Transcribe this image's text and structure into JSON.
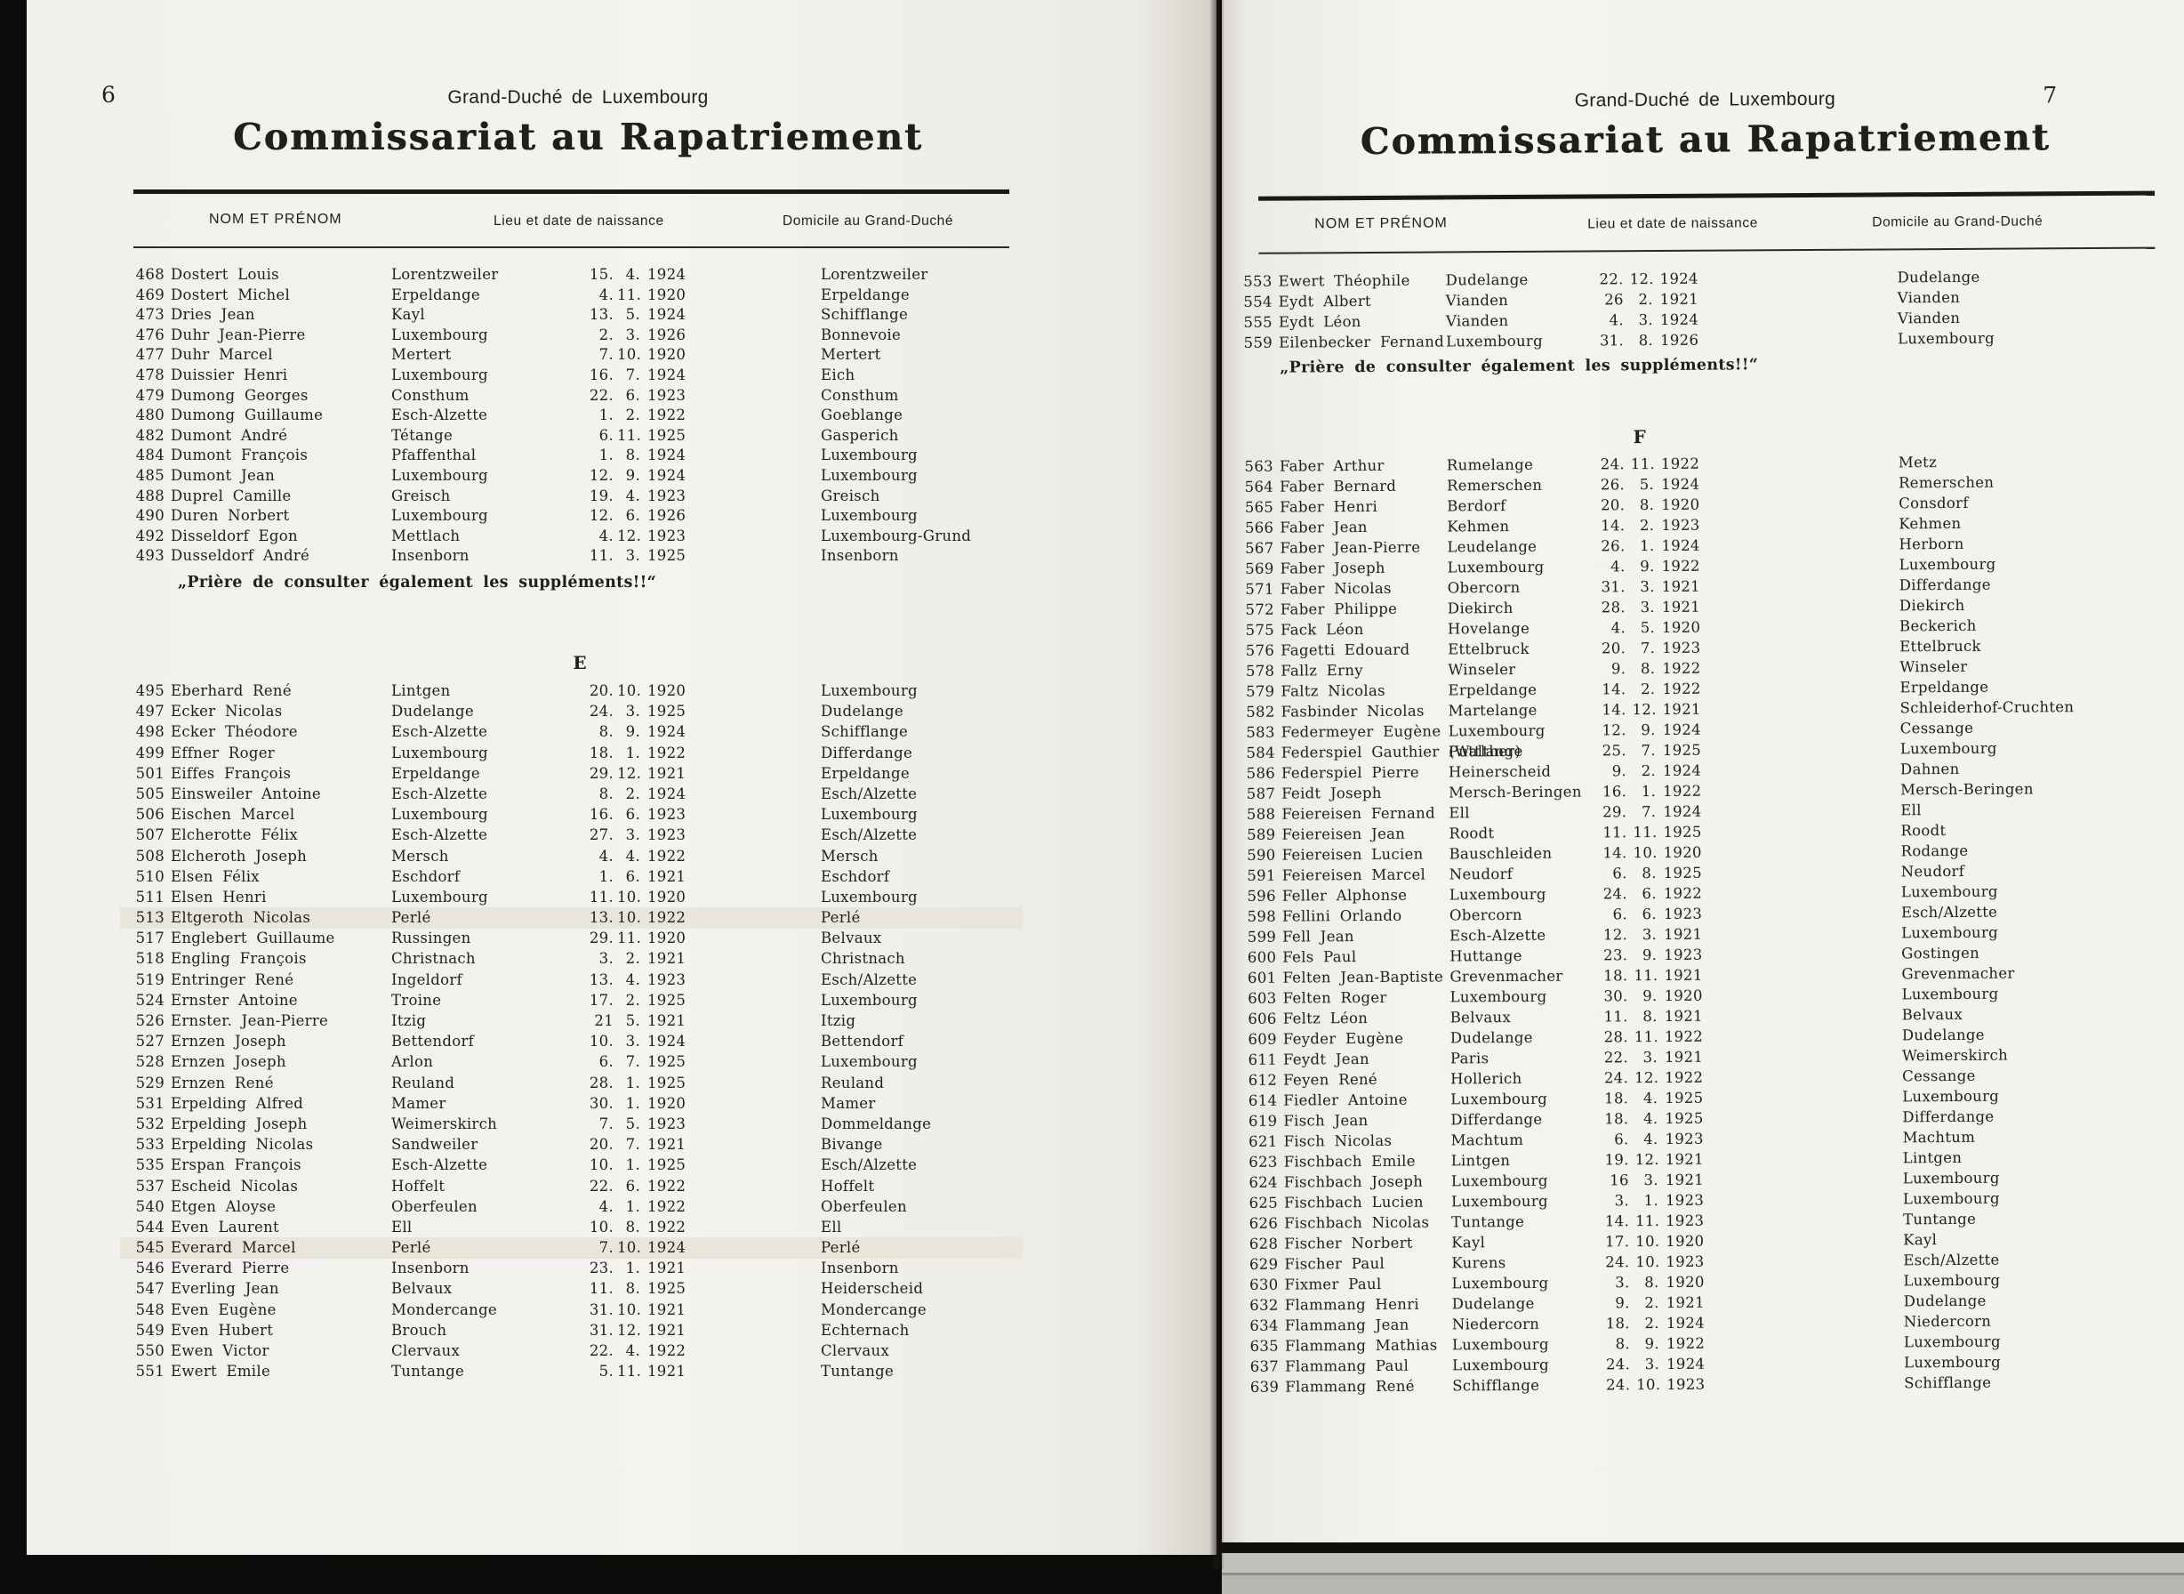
{
  "colors": {
    "paper": "#f4f3ee",
    "ink": "#211f1c",
    "row_highlight": "#e8e5db"
  },
  "page6": {
    "number": "6",
    "country_header": "Grand-Duché de Luxembourg",
    "title": "Commissariat au Rapatriement",
    "col_name": "NOM ET PRÉNOM",
    "col_birth": "Lieu et date de naissance",
    "col_domicile": "Domicile au Grand-Duché",
    "note": "„Prière de consulter également les suppléments!!“",
    "section_letter": "E",
    "block1": [
      {
        "no": "468",
        "name": "Dostert Louis",
        "birth": "Lorentzweiler",
        "d": "15.",
        "m": "4.",
        "y": "1924",
        "dom": "Lorentzweiler"
      },
      {
        "no": "469",
        "name": "Dostert Michel",
        "birth": "Erpeldange",
        "d": "4.",
        "m": "11.",
        "y": "1920",
        "dom": "Erpeldange"
      },
      {
        "no": "473",
        "name": "Dries Jean",
        "birth": "Kayl",
        "d": "13.",
        "m": "5.",
        "y": "1924",
        "dom": "Schifflange"
      },
      {
        "no": "476",
        "name": "Duhr Jean-Pierre",
        "birth": "Luxembourg",
        "d": "2.",
        "m": "3.",
        "y": "1926",
        "dom": "Bonnevoie"
      },
      {
        "no": "477",
        "name": "Duhr Marcel",
        "birth": "Mertert",
        "d": "7.",
        "m": "10.",
        "y": "1920",
        "dom": "Mertert"
      },
      {
        "no": "478",
        "name": "Duissier Henri",
        "birth": "Luxembourg",
        "d": "16.",
        "m": "7.",
        "y": "1924",
        "dom": "Eich"
      },
      {
        "no": "479",
        "name": "Dumong Georges",
        "birth": "Consthum",
        "d": "22.",
        "m": "6.",
        "y": "1923",
        "dom": "Consthum"
      },
      {
        "no": "480",
        "name": "Dumong Guillaume",
        "birth": "Esch-Alzette",
        "d": "1.",
        "m": "2.",
        "y": "1922",
        "dom": "Goeblange"
      },
      {
        "no": "482",
        "name": "Dumont André",
        "birth": "Tétange",
        "d": "6.",
        "m": "11.",
        "y": "1925",
        "dom": "Gasperich"
      },
      {
        "no": "484",
        "name": "Dumont François",
        "birth": "Pfaffenthal",
        "d": "1.",
        "m": "8.",
        "y": "1924",
        "dom": "Luxembourg"
      },
      {
        "no": "485",
        "name": "Dumont Jean",
        "birth": "Luxembourg",
        "d": "12.",
        "m": "9.",
        "y": "1924",
        "dom": "Luxembourg"
      },
      {
        "no": "488",
        "name": "Duprel Camille",
        "birth": "Greisch",
        "d": "19.",
        "m": "4.",
        "y": "1923",
        "dom": "Greisch"
      },
      {
        "no": "490",
        "name": "Duren Norbert",
        "birth": "Luxembourg",
        "d": "12.",
        "m": "6.",
        "y": "1926",
        "dom": "Luxembourg"
      },
      {
        "no": "492",
        "name": "Disseldorf Egon",
        "birth": "Mettlach",
        "d": "4.",
        "m": "12.",
        "y": "1923",
        "dom": "Luxembourg-Grund"
      },
      {
        "no": "493",
        "name": "Dusseldorf André",
        "birth": "Insenborn",
        "d": "11.",
        "m": "3.",
        "y": "1925",
        "dom": "Insenborn"
      }
    ],
    "block2": [
      {
        "no": "495",
        "name": "Eberhard René",
        "birth": "Lintgen",
        "d": "20.",
        "m": "10.",
        "y": "1920",
        "dom": "Luxembourg"
      },
      {
        "no": "497",
        "name": "Ecker Nicolas",
        "birth": "Dudelange",
        "d": "24.",
        "m": "3.",
        "y": "1925",
        "dom": "Dudelange"
      },
      {
        "no": "498",
        "name": "Ecker Théodore",
        "birth": "Esch-Alzette",
        "d": "8.",
        "m": "9.",
        "y": "1924",
        "dom": "Schifflange"
      },
      {
        "no": "499",
        "name": "Effner Roger",
        "birth": "Luxembourg",
        "d": "18.",
        "m": "1.",
        "y": "1922",
        "dom": "Differdange"
      },
      {
        "no": "501",
        "name": "Eiffes François",
        "birth": "Erpeldange",
        "d": "29.",
        "m": "12.",
        "y": "1921",
        "dom": "Erpeldange"
      },
      {
        "no": "505",
        "name": "Einsweiler Antoine",
        "birth": "Esch-Alzette",
        "d": "8.",
        "m": "2.",
        "y": "1924",
        "dom": "Esch/Alzette"
      },
      {
        "no": "506",
        "name": "Eischen Marcel",
        "birth": "Luxembourg",
        "d": "16.",
        "m": "6.",
        "y": "1923",
        "dom": "Luxembourg"
      },
      {
        "no": "507",
        "name": "Elcherotte Félix",
        "birth": "Esch-Alzette",
        "d": "27.",
        "m": "3.",
        "y": "1923",
        "dom": "Esch/Alzette"
      },
      {
        "no": "508",
        "name": "Elcheroth Joseph",
        "birth": "Mersch",
        "d": "4.",
        "m": "4.",
        "y": "1922",
        "dom": "Mersch"
      },
      {
        "no": "510",
        "name": "Elsen Félix",
        "birth": "Eschdorf",
        "d": "1.",
        "m": "6.",
        "y": "1921",
        "dom": "Eschdorf"
      },
      {
        "no": "511",
        "name": "Elsen Henri",
        "birth": "Luxembourg",
        "d": "11.",
        "m": "10.",
        "y": "1920",
        "dom": "Luxembourg"
      },
      {
        "no": "513",
        "name": "Eltgeroth Nicolas",
        "birth": "Perlé",
        "d": "13.",
        "m": "10.",
        "y": "1922",
        "dom": "Perlé",
        "hl": true
      },
      {
        "no": "517",
        "name": "Englebert Guillaume",
        "birth": "Russingen",
        "d": "29.",
        "m": "11.",
        "y": "1920",
        "dom": "Belvaux"
      },
      {
        "no": "518",
        "name": "Engling François",
        "birth": "Christnach",
        "d": "3.",
        "m": "2.",
        "y": "1921",
        "dom": "Christnach"
      },
      {
        "no": "519",
        "name": "Entringer René",
        "birth": "Ingeldorf",
        "d": "13.",
        "m": "4.",
        "y": "1923",
        "dom": "Esch/Alzette"
      },
      {
        "no": "524",
        "name": "Ernster Antoine",
        "birth": "Troine",
        "d": "17.",
        "m": "2.",
        "y": "1925",
        "dom": "Luxembourg"
      },
      {
        "no": "526",
        "name": "Ernster. Jean-Pierre",
        "birth": "Itzig",
        "d": "21",
        "m": "5.",
        "y": "1921",
        "dom": "Itzig"
      },
      {
        "no": "527",
        "name": "Ernzen Joseph",
        "birth": "Bettendorf",
        "d": "10.",
        "m": "3.",
        "y": "1924",
        "dom": "Bettendorf"
      },
      {
        "no": "528",
        "name": "Ernzen Joseph",
        "birth": "Arlon",
        "d": "6.",
        "m": "7.",
        "y": "1925",
        "dom": "Luxembourg"
      },
      {
        "no": "529",
        "name": "Ernzen René",
        "birth": "Reuland",
        "d": "28.",
        "m": "1.",
        "y": "1925",
        "dom": "Reuland"
      },
      {
        "no": "531",
        "name": "Erpelding Alfred",
        "birth": "Mamer",
        "d": "30.",
        "m": "1.",
        "y": "1920",
        "dom": "Mamer"
      },
      {
        "no": "532",
        "name": "Erpelding Joseph",
        "birth": "Weimerskirch",
        "d": "7.",
        "m": "5.",
        "y": "1923",
        "dom": "Dommeldange"
      },
      {
        "no": "533",
        "name": "Erpelding Nicolas",
        "birth": "Sandweiler",
        "d": "20.",
        "m": "7.",
        "y": "1921",
        "dom": "Bivange"
      },
      {
        "no": "535",
        "name": "Erspan François",
        "birth": "Esch-Alzette",
        "d": "10.",
        "m": "1.",
        "y": "1925",
        "dom": "Esch/Alzette"
      },
      {
        "no": "537",
        "name": "Escheid Nicolas",
        "birth": "Hoffelt",
        "d": "22.",
        "m": "6.",
        "y": "1922",
        "dom": "Hoffelt"
      },
      {
        "no": "540",
        "name": "Etgen Aloyse",
        "birth": "Oberfeulen",
        "d": "4.",
        "m": "1.",
        "y": "1922",
        "dom": "Oberfeulen"
      },
      {
        "no": "544",
        "name": "Even Laurent",
        "birth": "Ell",
        "d": "10.",
        "m": "8.",
        "y": "1922",
        "dom": "Ell"
      },
      {
        "no": "545",
        "name": "Everard Marcel",
        "birth": "Perlé",
        "d": "7.",
        "m": "10.",
        "y": "1924",
        "dom": "Perlé",
        "hl": true
      },
      {
        "no": "546",
        "name": "Everard Pierre",
        "birth": "Insenborn",
        "d": "23.",
        "m": "1.",
        "y": "1921",
        "dom": "Insenborn"
      },
      {
        "no": "547",
        "name": "Everling Jean",
        "birth": "Belvaux",
        "d": "11.",
        "m": "8.",
        "y": "1925",
        "dom": "Heiderscheid"
      },
      {
        "no": "548",
        "name": "Even Eugène",
        "birth": "Mondercange",
        "d": "31.",
        "m": "10.",
        "y": "1921",
        "dom": "Mondercange"
      },
      {
        "no": "549",
        "name": "Even Hubert",
        "birth": "Brouch",
        "d": "31.",
        "m": "12.",
        "y": "1921",
        "dom": "Echternach"
      },
      {
        "no": "550",
        "name": "Ewen Victor",
        "birth": "Clervaux",
        "d": "22.",
        "m": "4.",
        "y": "1922",
        "dom": "Clervaux"
      },
      {
        "no": "551",
        "name": "Ewert Emile",
        "birth": "Tuntange",
        "d": "5.",
        "m": "11.",
        "y": "1921",
        "dom": "Tuntange"
      }
    ]
  },
  "page7": {
    "number": "7",
    "country_header": "Grand-Duché de Luxembourg",
    "title": "Commissariat au Rapatriement",
    "col_name": "NOM ET PRÉNOM",
    "col_birth": "Lieu et date de naissance",
    "col_domicile": "Domicile au Grand-Duché",
    "note": "„Prière de consulter également les suppléments!!“",
    "section_letter": "F",
    "block1": [
      {
        "no": "553",
        "name": "Ewert Théophile",
        "birth": "Dudelange",
        "d": "22.",
        "m": "12.",
        "y": "1924",
        "dom": "Dudelange"
      },
      {
        "no": "554",
        "name": "Eydt Albert",
        "birth": "Vianden",
        "d": "26",
        "m": "2.",
        "y": "1921",
        "dom": "Vianden"
      },
      {
        "no": "555",
        "name": "Eydt Léon",
        "birth": "Vianden",
        "d": "4.",
        "m": "3.",
        "y": "1924",
        "dom": "Vianden"
      },
      {
        "no": "559",
        "name": "Eilenbecker Fernand",
        "birth": "Luxembourg",
        "d": "31.",
        "m": "8.",
        "y": "1926",
        "dom": "Luxembourg"
      }
    ],
    "block2": [
      {
        "no": "563",
        "name": "Faber Arthur",
        "birth": "Rumelange",
        "d": "24.",
        "m": "11.",
        "y": "1922",
        "dom": "Metz"
      },
      {
        "no": "564",
        "name": "Faber Bernard",
        "birth": "Remerschen",
        "d": "26.",
        "m": "5.",
        "y": "1924",
        "dom": "Remerschen"
      },
      {
        "no": "565",
        "name": "Faber Henri",
        "birth": "Berdorf",
        "d": "20.",
        "m": "8.",
        "y": "1920",
        "dom": "Consdorf"
      },
      {
        "no": "566",
        "name": "Faber Jean",
        "birth": "Kehmen",
        "d": "14.",
        "m": "2.",
        "y": "1923",
        "dom": "Kehmen"
      },
      {
        "no": "567",
        "name": "Faber Jean-Pierre",
        "birth": "Leudelange",
        "d": "26.",
        "m": "1.",
        "y": "1924",
        "dom": "Herborn"
      },
      {
        "no": "569",
        "name": "Faber Joseph",
        "birth": "Luxembourg",
        "d": "4.",
        "m": "9.",
        "y": "1922",
        "dom": "Luxembourg"
      },
      {
        "no": "571",
        "name": "Faber Nicolas",
        "birth": "Obercorn",
        "d": "31.",
        "m": "3.",
        "y": "1921",
        "dom": "Differdange"
      },
      {
        "no": "572",
        "name": "Faber Philippe",
        "birth": "Diekirch",
        "d": "28.",
        "m": "3.",
        "y": "1921",
        "dom": "Diekirch"
      },
      {
        "no": "575",
        "name": "Fack Léon",
        "birth": "Hovelange",
        "d": "4.",
        "m": "5.",
        "y": "1920",
        "dom": "Beckerich"
      },
      {
        "no": "576",
        "name": "Fagetti Edouard",
        "birth": "Ettelbruck",
        "d": "20.",
        "m": "7.",
        "y": "1923",
        "dom": "Ettelbruck"
      },
      {
        "no": "578",
        "name": "Fallz Erny",
        "birth": "Winseler",
        "d": "9.",
        "m": "8.",
        "y": "1922",
        "dom": "Winseler"
      },
      {
        "no": "579",
        "name": "Faltz Nicolas",
        "birth": "Erpeldange",
        "d": "14.",
        "m": "2.",
        "y": "1922",
        "dom": "Erpeldange"
      },
      {
        "no": "582",
        "name": "Fasbinder Nicolas",
        "birth": "Martelange",
        "d": "14.",
        "m": "12.",
        "y": "1921",
        "dom": "Schleiderhof-Cruchten"
      },
      {
        "no": "583",
        "name": "Federmeyer Eugène",
        "birth": "Luxembourg",
        "d": "12.",
        "m": "9.",
        "y": "1924",
        "dom": "Cessange"
      },
      {
        "no": "584",
        "name": "Federspiel Gauthier (Walther)",
        "birth": "Puttlange",
        "d": "25.",
        "m": "7.",
        "y": "1925",
        "dom": "Luxembourg"
      },
      {
        "no": "586",
        "name": "Federspiel Pierre",
        "birth": "Heinerscheid",
        "d": "9.",
        "m": "2.",
        "y": "1924",
        "dom": "Dahnen"
      },
      {
        "no": "587",
        "name": "Feidt Joseph",
        "birth": "Mersch-Beringen",
        "d": "16.",
        "m": "1.",
        "y": "1922",
        "dom": "Mersch-Beringen"
      },
      {
        "no": "588",
        "name": "Feiereisen Fernand",
        "birth": "Ell",
        "d": "29.",
        "m": "7.",
        "y": "1924",
        "dom": "Ell"
      },
      {
        "no": "589",
        "name": "Feiereisen Jean",
        "birth": "Roodt",
        "d": "11.",
        "m": "11.",
        "y": "1925",
        "dom": "Roodt"
      },
      {
        "no": "590",
        "name": "Feiereisen Lucien",
        "birth": "Bauschleiden",
        "d": "14.",
        "m": "10.",
        "y": "1920",
        "dom": "Rodange"
      },
      {
        "no": "591",
        "name": "Feiereisen Marcel",
        "birth": "Neudorf",
        "d": "6.",
        "m": "8.",
        "y": "1925",
        "dom": "Neudorf"
      },
      {
        "no": "596",
        "name": "Feller Alphonse",
        "birth": "Luxembourg",
        "d": "24.",
        "m": "6.",
        "y": "1922",
        "dom": "Luxembourg"
      },
      {
        "no": "598",
        "name": "Fellini Orlando",
        "birth": "Obercorn",
        "d": "6.",
        "m": "6.",
        "y": "1923",
        "dom": "Esch/Alzette"
      },
      {
        "no": "599",
        "name": "Fell Jean",
        "birth": "Esch-Alzette",
        "d": "12.",
        "m": "3.",
        "y": "1921",
        "dom": "Luxembourg"
      },
      {
        "no": "600",
        "name": "Fels Paul",
        "birth": "Huttange",
        "d": "23.",
        "m": "9.",
        "y": "1923",
        "dom": "Gostingen"
      },
      {
        "no": "601",
        "name": "Felten Jean-Baptiste",
        "birth": "Grevenmacher",
        "d": "18.",
        "m": "11.",
        "y": "1921",
        "dom": "Grevenmacher"
      },
      {
        "no": "603",
        "name": "Felten Roger",
        "birth": "Luxembourg",
        "d": "30.",
        "m": "9.",
        "y": "1920",
        "dom": "Luxembourg"
      },
      {
        "no": "606",
        "name": "Feltz Léon",
        "birth": "Belvaux",
        "d": "11.",
        "m": "8.",
        "y": "1921",
        "dom": "Belvaux"
      },
      {
        "no": "609",
        "name": "Feyder Eugène",
        "birth": "Dudelange",
        "d": "28.",
        "m": "11.",
        "y": "1922",
        "dom": "Dudelange"
      },
      {
        "no": "611",
        "name": "Feydt Jean",
        "birth": "Paris",
        "d": "22.",
        "m": "3.",
        "y": "1921",
        "dom": "Weimerskirch"
      },
      {
        "no": "612",
        "name": "Feyen René",
        "birth": "Hollerich",
        "d": "24.",
        "m": "12.",
        "y": "1922",
        "dom": "Cessange"
      },
      {
        "no": "614",
        "name": "Fiedler Antoine",
        "birth": "Luxembourg",
        "d": "18.",
        "m": "4.",
        "y": "1925",
        "dom": "Luxembourg"
      },
      {
        "no": "619",
        "name": "Fisch Jean",
        "birth": "Differdange",
        "d": "18.",
        "m": "4.",
        "y": "1925",
        "dom": "Differdange"
      },
      {
        "no": "621",
        "name": "Fisch Nicolas",
        "birth": "Machtum",
        "d": "6.",
        "m": "4.",
        "y": "1923",
        "dom": "Machtum"
      },
      {
        "no": "623",
        "name": "Fischbach Emile",
        "birth": "Lintgen",
        "d": "19.",
        "m": "12.",
        "y": "1921",
        "dom": "Lintgen"
      },
      {
        "no": "624",
        "name": "Fischbach Joseph",
        "birth": "Luxembourg",
        "d": "16",
        "m": "3.",
        "y": "1921",
        "dom": "Luxembourg"
      },
      {
        "no": "625",
        "name": "Fischbach Lucien",
        "birth": "Luxembourg",
        "d": "3.",
        "m": "1.",
        "y": "1923",
        "dom": "Luxembourg"
      },
      {
        "no": "626",
        "name": "Fischbach Nicolas",
        "birth": "Tuntange",
        "d": "14.",
        "m": "11.",
        "y": "1923",
        "dom": "Tuntange"
      },
      {
        "no": "628",
        "name": "Fischer Norbert",
        "birth": "Kayl",
        "d": "17.",
        "m": "10.",
        "y": "1920",
        "dom": "Kayl"
      },
      {
        "no": "629",
        "name": "Fischer Paul",
        "birth": "Kurens",
        "d": "24.",
        "m": "10.",
        "y": "1923",
        "dom": "Esch/Alzette"
      },
      {
        "no": "630",
        "name": "Fixmer Paul",
        "birth": "Luxembourg",
        "d": "3.",
        "m": "8.",
        "y": "1920",
        "dom": "Luxembourg"
      },
      {
        "no": "632",
        "name": "Flammang Henri",
        "birth": "Dudelange",
        "d": "9.",
        "m": "2.",
        "y": "1921",
        "dom": "Dudelange"
      },
      {
        "no": "634",
        "name": "Flammang Jean",
        "birth": "Niedercorn",
        "d": "18.",
        "m": "2.",
        "y": "1924",
        "dom": "Niedercorn"
      },
      {
        "no": "635",
        "name": "Flammang Mathias",
        "birth": "Luxembourg",
        "d": "8.",
        "m": "9.",
        "y": "1922",
        "dom": "Luxembourg"
      },
      {
        "no": "637",
        "name": "Flammang Paul",
        "birth": "Luxembourg",
        "d": "24.",
        "m": "3.",
        "y": "1924",
        "dom": "Luxembourg"
      },
      {
        "no": "639",
        "name": "Flammang René",
        "birth": "Schifflange",
        "d": "24.",
        "m": "10.",
        "y": "1923",
        "dom": "Schifflange"
      }
    ]
  }
}
